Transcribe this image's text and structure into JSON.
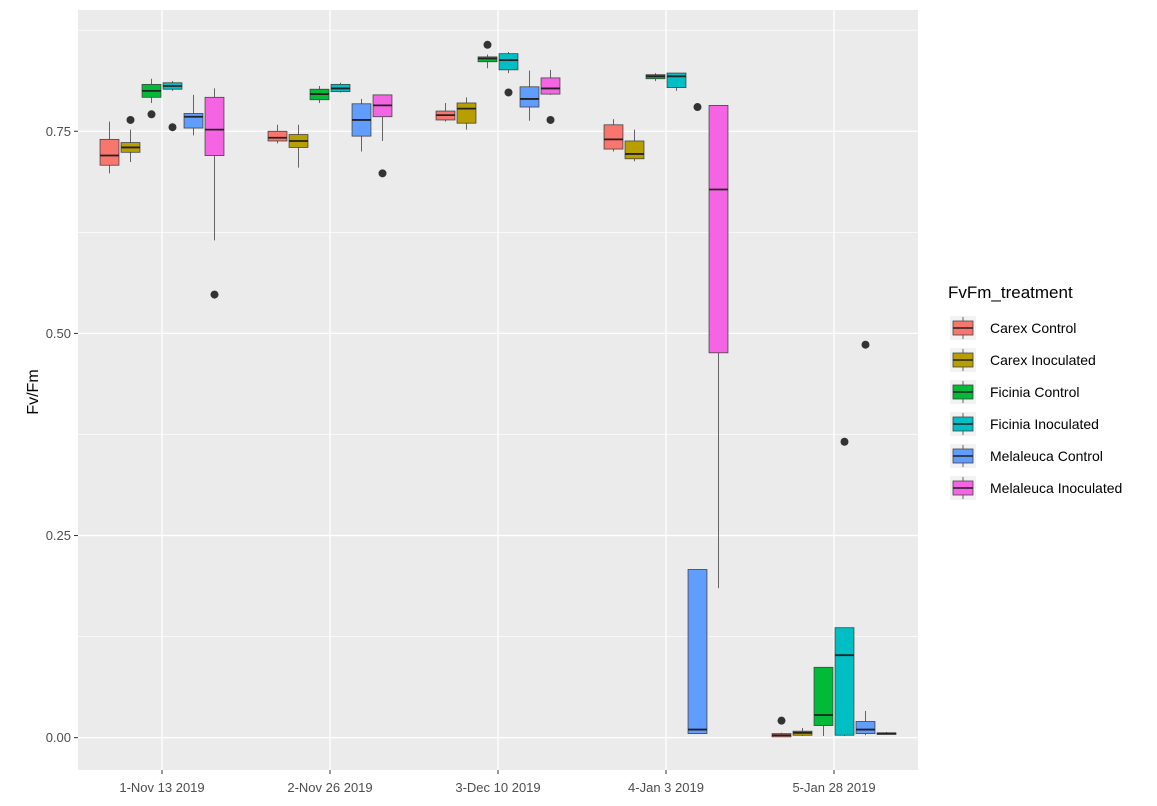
{
  "chart_data": {
    "type": "box",
    "title": "",
    "xlabel": "",
    "ylabel": "Fv/Fm",
    "ylim": [
      -0.04,
      0.9
    ],
    "y_ticks": [
      "0.00",
      "0.25",
      "0.50",
      "0.75"
    ],
    "y_tick_values": [
      0.0,
      0.25,
      0.5,
      0.75
    ],
    "categories": [
      "1-Nov 13 2019",
      "2-Nov 26 2019",
      "3-Dec 10 2019",
      "4-Jan 3 2019",
      "5-Jan 28 2019"
    ],
    "legend": {
      "title": "FvFm_treatment",
      "placement": "right"
    },
    "series": [
      {
        "name": "Carex Control",
        "color": "#F8766D",
        "boxes": [
          {
            "min": 0.698,
            "q1": 0.708,
            "median": 0.72,
            "q3": 0.74,
            "max": 0.762,
            "outliers": []
          },
          {
            "min": 0.735,
            "q1": 0.738,
            "median": 0.742,
            "q3": 0.75,
            "max": 0.758,
            "outliers": []
          },
          {
            "min": 0.762,
            "q1": 0.764,
            "median": 0.77,
            "q3": 0.775,
            "max": 0.785,
            "outliers": []
          },
          {
            "min": 0.725,
            "q1": 0.728,
            "median": 0.74,
            "q3": 0.758,
            "max": 0.765,
            "outliers": []
          },
          {
            "min": 0.001,
            "q1": 0.001,
            "median": 0.003,
            "q3": 0.005,
            "max": 0.006,
            "outliers": [
              0.021
            ]
          }
        ]
      },
      {
        "name": "Carex Inoculated",
        "color": "#B79F00",
        "boxes": [
          {
            "min": 0.712,
            "q1": 0.724,
            "median": 0.73,
            "q3": 0.736,
            "max": 0.752,
            "outliers": [
              0.764
            ]
          },
          {
            "min": 0.705,
            "q1": 0.73,
            "median": 0.738,
            "q3": 0.746,
            "max": 0.758,
            "outliers": []
          },
          {
            "min": 0.752,
            "q1": 0.76,
            "median": 0.778,
            "q3": 0.785,
            "max": 0.792,
            "outliers": []
          },
          {
            "min": 0.713,
            "q1": 0.716,
            "median": 0.722,
            "q3": 0.738,
            "max": 0.752,
            "outliers": []
          },
          {
            "min": 0.002,
            "q1": 0.003,
            "median": 0.006,
            "q3": 0.008,
            "max": 0.012,
            "outliers": []
          }
        ]
      },
      {
        "name": "Ficinia Control",
        "color": "#00BA38",
        "boxes": [
          {
            "min": 0.785,
            "q1": 0.792,
            "median": 0.8,
            "q3": 0.808,
            "max": 0.815,
            "outliers": [
              0.771
            ]
          },
          {
            "min": 0.785,
            "q1": 0.789,
            "median": 0.796,
            "q3": 0.802,
            "max": 0.806,
            "outliers": []
          },
          {
            "min": 0.828,
            "q1": 0.836,
            "median": 0.84,
            "q3": 0.842,
            "max": 0.845,
            "outliers": [
              0.857
            ]
          },
          {
            "min": 0.812,
            "q1": 0.815,
            "median": 0.818,
            "q3": 0.82,
            "max": 0.822,
            "outliers": []
          },
          {
            "min": 0.002,
            "q1": 0.015,
            "median": 0.028,
            "q3": 0.087,
            "max": 0.087,
            "outliers": []
          }
        ]
      },
      {
        "name": "Ficinia Inoculated",
        "color": "#00BFC4",
        "boxes": [
          {
            "min": 0.8,
            "q1": 0.802,
            "median": 0.806,
            "q3": 0.81,
            "max": 0.812,
            "outliers": [
              0.755
            ]
          },
          {
            "min": 0.798,
            "q1": 0.799,
            "median": 0.803,
            "q3": 0.808,
            "max": 0.81,
            "outliers": []
          },
          {
            "min": 0.822,
            "q1": 0.826,
            "median": 0.838,
            "q3": 0.846,
            "max": 0.848,
            "outliers": [
              0.798
            ]
          },
          {
            "min": 0.8,
            "q1": 0.804,
            "median": 0.818,
            "q3": 0.822,
            "max": 0.822,
            "outliers": []
          },
          {
            "min": 0.002,
            "q1": 0.003,
            "median": 0.102,
            "q3": 0.136,
            "max": 0.136,
            "outliers": [
              0.366
            ]
          }
        ]
      },
      {
        "name": "Melaleuca Control",
        "color": "#619CFF",
        "boxes": [
          {
            "min": 0.745,
            "q1": 0.754,
            "median": 0.768,
            "q3": 0.772,
            "max": 0.795,
            "outliers": []
          },
          {
            "min": 0.725,
            "q1": 0.744,
            "median": 0.764,
            "q3": 0.784,
            "max": 0.79,
            "outliers": []
          },
          {
            "min": 0.763,
            "q1": 0.78,
            "median": 0.79,
            "q3": 0.805,
            "max": 0.825,
            "outliers": []
          },
          {
            "min": 0.005,
            "q1": 0.005,
            "median": 0.01,
            "q3": 0.208,
            "max": 0.208,
            "outliers": [
              0.78
            ]
          },
          {
            "min": 0.003,
            "q1": 0.005,
            "median": 0.01,
            "q3": 0.02,
            "max": 0.033,
            "outliers": [
              0.486
            ]
          }
        ]
      },
      {
        "name": "Melaleuca Inoculated",
        "color": "#F564E3",
        "boxes": [
          {
            "min": 0.615,
            "q1": 0.72,
            "median": 0.752,
            "q3": 0.792,
            "max": 0.803,
            "outliers": [
              0.548
            ]
          },
          {
            "min": 0.738,
            "q1": 0.768,
            "median": 0.782,
            "q3": 0.795,
            "max": 0.795,
            "outliers": [
              0.698
            ]
          },
          {
            "min": 0.795,
            "q1": 0.796,
            "median": 0.803,
            "q3": 0.816,
            "max": 0.826,
            "outliers": [
              0.764
            ]
          },
          {
            "min": 0.185,
            "q1": 0.476,
            "median": 0.678,
            "q3": 0.782,
            "max": 0.782,
            "outliers": []
          },
          {
            "min": 0.004,
            "q1": 0.004,
            "median": 0.005,
            "q3": 0.006,
            "max": 0.007,
            "outliers": []
          }
        ]
      }
    ]
  }
}
